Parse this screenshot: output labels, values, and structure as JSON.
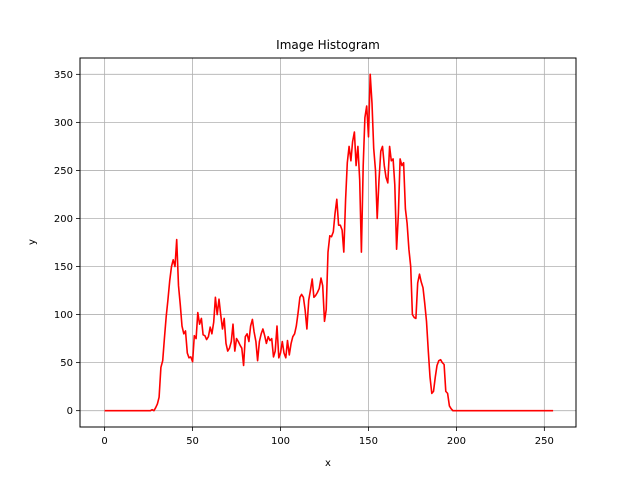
{
  "chart_data": {
    "type": "line",
    "title": "Image Histogram",
    "xlabel": "x",
    "ylabel": "y",
    "xlim": [
      -14,
      268
    ],
    "ylim": [
      -17,
      367
    ],
    "xticks": [
      0,
      50,
      100,
      150,
      200,
      250
    ],
    "yticks": [
      0,
      50,
      100,
      150,
      200,
      250,
      300,
      350
    ],
    "grid": true,
    "colors": {
      "series": "#ff0000",
      "grid": "#b0b0b0",
      "axis": "#000000"
    },
    "series": [
      {
        "x": [
          0,
          26,
          27,
          28,
          29,
          30,
          31,
          32,
          33,
          34,
          35,
          36,
          37,
          38,
          39,
          40,
          41,
          42,
          43,
          44,
          45,
          46,
          47,
          48,
          49,
          50,
          51,
          52,
          53,
          54,
          55,
          56,
          57,
          58,
          59,
          60,
          61,
          62,
          63,
          64,
          65,
          66,
          67,
          68,
          69,
          70,
          71,
          72,
          73,
          74,
          75,
          76,
          77,
          78,
          79,
          80,
          81,
          82,
          83,
          84,
          85,
          86,
          87,
          88,
          89,
          90,
          91,
          92,
          93,
          94,
          95,
          96,
          97,
          98,
          99,
          100,
          101,
          102,
          103,
          104,
          105,
          106,
          107,
          108,
          109,
          110,
          111,
          112,
          113,
          114,
          115,
          116,
          117,
          118,
          119,
          120,
          121,
          122,
          123,
          124,
          125,
          126,
          127,
          128,
          129,
          130,
          131,
          132,
          133,
          134,
          135,
          136,
          137,
          138,
          139,
          140,
          141,
          142,
          143,
          144,
          145,
          146,
          147,
          148,
          149,
          150,
          151,
          152,
          153,
          154,
          155,
          156,
          157,
          158,
          159,
          160,
          161,
          162,
          163,
          164,
          165,
          166,
          167,
          168,
          169,
          170,
          171,
          172,
          173,
          174,
          175,
          176,
          177,
          178,
          179,
          180,
          181,
          182,
          183,
          184,
          185,
          186,
          187,
          188,
          189,
          190,
          191,
          192,
          193,
          194,
          195,
          196,
          197,
          198,
          199,
          200,
          255
        ],
        "y": [
          0,
          0,
          1,
          0,
          3,
          7,
          14,
          45,
          52,
          75,
          98,
          115,
          135,
          150,
          157,
          150,
          178,
          130,
          110,
          88,
          80,
          83,
          60,
          55,
          56,
          51,
          78,
          75,
          102,
          90,
          96,
          79,
          78,
          74,
          77,
          87,
          80,
          92,
          118,
          100,
          116,
          100,
          85,
          96,
          70,
          62,
          65,
          72,
          90,
          62,
          75,
          72,
          68,
          65,
          47,
          77,
          80,
          72,
          88,
          95,
          82,
          72,
          52,
          72,
          80,
          85,
          78,
          70,
          77,
          73,
          75,
          56,
          62,
          88,
          55,
          60,
          72,
          60,
          55,
          73,
          58,
          70,
          77,
          80,
          88,
          102,
          118,
          121,
          118,
          105,
          85,
          115,
          125,
          137,
          118,
          120,
          123,
          127,
          138,
          130,
          93,
          105,
          165,
          182,
          181,
          186,
          205,
          220,
          193,
          193,
          188,
          165,
          220,
          258,
          275,
          260,
          280,
          290,
          255,
          275,
          240,
          165,
          255,
          305,
          317,
          285,
          350,
          320,
          273,
          250,
          200,
          240,
          270,
          275,
          255,
          243,
          237,
          275,
          260,
          262,
          235,
          168,
          205,
          262,
          255,
          258,
          210,
          195,
          168,
          150,
          100,
          97,
          96,
          133,
          142,
          134,
          128,
          112,
          93,
          62,
          35,
          18,
          20,
          35,
          47,
          52,
          53,
          50,
          48,
          20,
          18,
          5,
          2,
          0,
          0,
          0,
          0
        ]
      }
    ]
  }
}
